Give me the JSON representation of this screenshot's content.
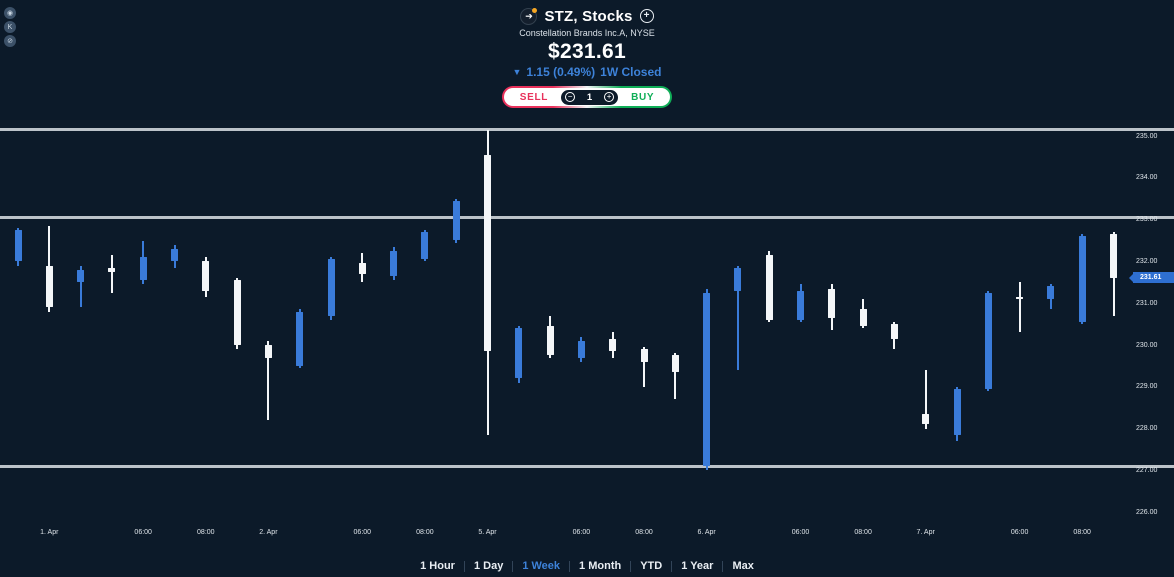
{
  "header": {
    "symbol": "STZ, Stocks",
    "subtitle": "Constellation Brands Inc.A, NYSE",
    "price": "$231.61",
    "change_arrow": "▼",
    "change": "1.15 (0.49%)",
    "period_status": "1W Closed",
    "logo_glyph": "➔",
    "add_glyph": "+"
  },
  "overlay_icons": [
    {
      "name": "record-icon",
      "glyph": "◉"
    },
    {
      "name": "k-circle-icon",
      "glyph": "K"
    },
    {
      "name": "block-icon",
      "glyph": "⊘"
    }
  ],
  "trade_bar": {
    "sell_label": "SELL",
    "buy_label": "BUY",
    "quantity": "1",
    "minus_glyph": "−",
    "plus_glyph": "+"
  },
  "timeframe_bar": {
    "items": [
      "1 Hour",
      "1 Day",
      "1 Week",
      "1 Month",
      "YTD",
      "1 Year",
      "Max"
    ],
    "active": "1 Week"
  },
  "colors": {
    "background": "#0c1a29",
    "accent_blue": "#3d82d9",
    "candle_up": "#3a7bd9",
    "candle_down": "#f4f6f8",
    "sell_red": "#e8315b",
    "buy_green": "#0fae57",
    "gridline_gray": "#bcc3c9",
    "price_tag_blue": "#2e6fd1"
  },
  "chart_data": {
    "type": "candlestick",
    "y_axis": {
      "position": "right",
      "ticks": [
        "235.00",
        "234.00",
        "233.00",
        "232.00",
        "231.00",
        "230.00",
        "229.00",
        "228.00",
        "227.00",
        "226.00"
      ],
      "range": [
        226.0,
        235.0
      ]
    },
    "x_axis": {
      "ticks": [
        {
          "index": 1,
          "label": "1. Apr"
        },
        {
          "index": 4,
          "label": "06:00"
        },
        {
          "index": 6,
          "label": "08:00"
        },
        {
          "index": 8,
          "label": "2. Apr"
        },
        {
          "index": 11,
          "label": "06:00"
        },
        {
          "index": 13,
          "label": "08:00"
        },
        {
          "index": 15,
          "label": "5. Apr"
        },
        {
          "index": 18,
          "label": "06:00"
        },
        {
          "index": 20,
          "label": "08:00"
        },
        {
          "index": 22,
          "label": "6. Apr"
        },
        {
          "index": 25,
          "label": "06:00"
        },
        {
          "index": 27,
          "label": "08:00"
        },
        {
          "index": 29,
          "label": "7. Apr"
        },
        {
          "index": 32,
          "label": "06:00"
        },
        {
          "index": 34,
          "label": "08:00"
        }
      ]
    },
    "horizontal_lines": [
      235.15,
      233.05,
      227.1
    ],
    "last_price_tag": {
      "label": "231.61",
      "price": 231.61
    },
    "candles": [
      {
        "o": 232.0,
        "h": 232.8,
        "l": 231.9,
        "c": 232.75
      },
      {
        "o": 231.9,
        "h": 232.85,
        "l": 230.8,
        "c": 230.9
      },
      {
        "o": 231.5,
        "h": 231.9,
        "l": 230.9,
        "c": 231.8
      },
      {
        "o": 231.85,
        "h": 232.15,
        "l": 231.25,
        "c": 231.75
      },
      {
        "o": 231.55,
        "h": 232.5,
        "l": 231.45,
        "c": 232.1
      },
      {
        "o": 232.0,
        "h": 232.4,
        "l": 231.85,
        "c": 232.3
      },
      {
        "o": 232.0,
        "h": 232.1,
        "l": 231.15,
        "c": 231.3
      },
      {
        "o": 231.55,
        "h": 231.6,
        "l": 229.9,
        "c": 230.0
      },
      {
        "o": 230.0,
        "h": 230.1,
        "l": 228.2,
        "c": 229.7
      },
      {
        "o": 229.5,
        "h": 230.85,
        "l": 229.45,
        "c": 230.8
      },
      {
        "o": 230.7,
        "h": 232.1,
        "l": 230.6,
        "c": 232.05
      },
      {
        "o": 231.95,
        "h": 232.2,
        "l": 231.5,
        "c": 231.7
      },
      {
        "o": 231.65,
        "h": 232.35,
        "l": 231.55,
        "c": 232.25
      },
      {
        "o": 232.05,
        "h": 232.75,
        "l": 232.0,
        "c": 232.7
      },
      {
        "o": 232.5,
        "h": 233.5,
        "l": 232.45,
        "c": 233.45
      },
      {
        "o": 234.55,
        "h": 235.15,
        "l": 227.85,
        "c": 229.85
      },
      {
        "o": 229.2,
        "h": 230.45,
        "l": 229.1,
        "c": 230.4
      },
      {
        "o": 230.45,
        "h": 230.7,
        "l": 229.7,
        "c": 229.75
      },
      {
        "o": 229.7,
        "h": 230.2,
        "l": 229.6,
        "c": 230.1
      },
      {
        "o": 230.15,
        "h": 230.3,
        "l": 229.7,
        "c": 229.85
      },
      {
        "o": 229.9,
        "h": 229.95,
        "l": 229.0,
        "c": 229.6
      },
      {
        "o": 229.75,
        "h": 229.8,
        "l": 228.7,
        "c": 229.35
      },
      {
        "o": 227.1,
        "h": 231.35,
        "l": 227.0,
        "c": 231.25
      },
      {
        "o": 231.3,
        "h": 231.9,
        "l": 229.4,
        "c": 231.85
      },
      {
        "o": 232.15,
        "h": 232.25,
        "l": 230.55,
        "c": 230.6
      },
      {
        "o": 230.6,
        "h": 231.45,
        "l": 230.55,
        "c": 231.3
      },
      {
        "o": 231.35,
        "h": 231.45,
        "l": 230.35,
        "c": 230.65
      },
      {
        "o": 230.85,
        "h": 231.1,
        "l": 230.4,
        "c": 230.45
      },
      {
        "o": 230.5,
        "h": 230.55,
        "l": 229.9,
        "c": 230.15
      },
      {
        "o": 228.35,
        "h": 229.4,
        "l": 228.0,
        "c": 228.1
      },
      {
        "o": 227.85,
        "h": 229.0,
        "l": 227.7,
        "c": 228.95
      },
      {
        "o": 228.95,
        "h": 231.3,
        "l": 228.9,
        "c": 231.25
      },
      {
        "o": 231.15,
        "h": 231.5,
        "l": 230.3,
        "c": 231.1
      },
      {
        "o": 231.1,
        "h": 231.45,
        "l": 230.85,
        "c": 231.4
      },
      {
        "o": 230.55,
        "h": 232.65,
        "l": 230.5,
        "c": 232.6
      },
      {
        "o": 232.65,
        "h": 232.7,
        "l": 230.7,
        "c": 231.61
      }
    ]
  }
}
